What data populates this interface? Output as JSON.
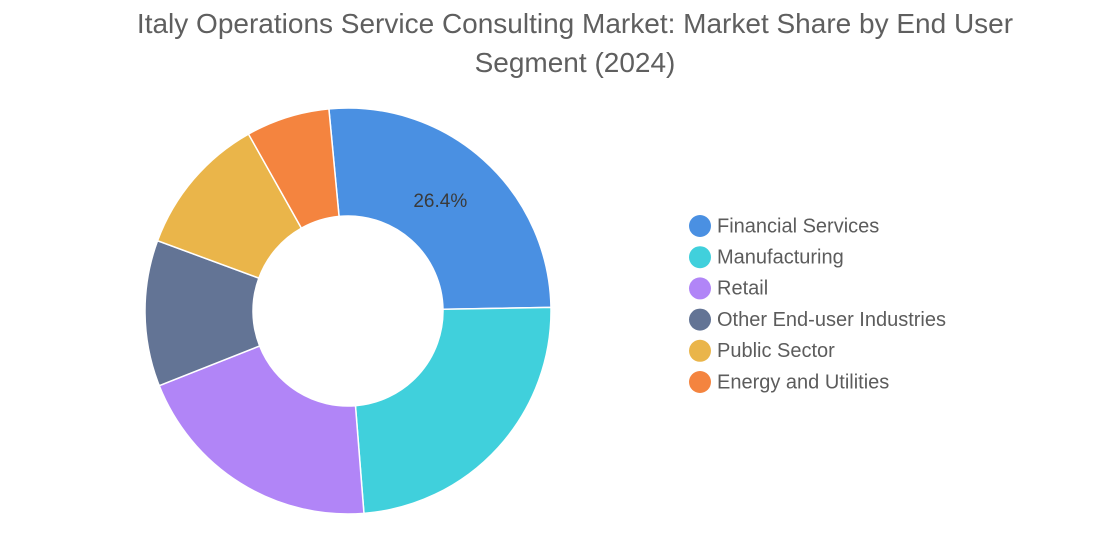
{
  "chart_data": {
    "type": "pie",
    "variant": "donut",
    "title": "Italy Operations Service Consulting Market: Market Share by End User Segment (2024)",
    "legend_position": "right",
    "slices": [
      {
        "label": "Financial Services",
        "value": 26.4,
        "color": "#4a90e2",
        "data_label": "26.4%"
      },
      {
        "label": "Manufacturing",
        "value": 24.2,
        "color": "#40d0dc",
        "data_label": ""
      },
      {
        "label": "Retail",
        "value": 20.4,
        "color": "#b185f7",
        "data_label": ""
      },
      {
        "label": "Other End-user Industries",
        "value": 11.7,
        "color": "#637495",
        "data_label": ""
      },
      {
        "label": "Public Sector",
        "value": 11.3,
        "color": "#eab54a",
        "data_label": ""
      },
      {
        "label": "Energy and Utilities",
        "value": 6.7,
        "color": "#f4843f",
        "data_label": ""
      }
    ]
  }
}
